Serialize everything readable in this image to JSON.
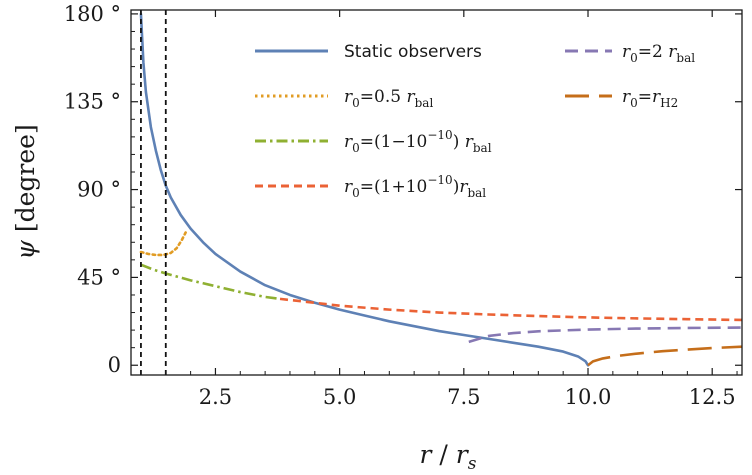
{
  "chart_data": {
    "type": "line",
    "xlabel_main": "r",
    "xlabel_sep": " / ",
    "xlabel_sub_base": "r",
    "xlabel_sub": "s",
    "ylabel_main": "ψ",
    "ylabel_unit": " [degree]",
    "xlim": [
      0.8,
      13.1
    ],
    "ylim": [
      -5,
      182
    ],
    "xticks": [
      {
        "value": 2.5,
        "label": "2.5"
      },
      {
        "value": 5.0,
        "label": "5.0"
      },
      {
        "value": 7.5,
        "label": "7.5"
      },
      {
        "value": 10.0,
        "label": "10.0"
      },
      {
        "value": 12.5,
        "label": "12.5"
      }
    ],
    "yticks": [
      {
        "value": 0,
        "label": "0"
      },
      {
        "value": 45,
        "label": "45 °"
      },
      {
        "value": 90,
        "label": "90 °"
      },
      {
        "value": 135,
        "label": "135 °"
      },
      {
        "value": 180,
        "label": "180 °"
      }
    ],
    "vlines": [
      1.0,
      1.5
    ],
    "series": [
      {
        "name": "Static observers",
        "color": "#5e81b5",
        "dash": "solid",
        "points": [
          [
            1.0,
            180
          ],
          [
            1.05,
            155
          ],
          [
            1.1,
            140
          ],
          [
            1.2,
            122
          ],
          [
            1.3,
            110
          ],
          [
            1.4,
            100
          ],
          [
            1.5,
            92
          ],
          [
            1.6,
            86
          ],
          [
            1.8,
            77
          ],
          [
            2.0,
            70
          ],
          [
            2.25,
            63
          ],
          [
            2.5,
            57
          ],
          [
            3.0,
            48
          ],
          [
            3.5,
            41
          ],
          [
            4.0,
            36
          ],
          [
            4.5,
            32
          ],
          [
            5.0,
            28.5
          ],
          [
            5.5,
            25.5
          ],
          [
            6.0,
            22.5
          ],
          [
            6.5,
            20.0
          ],
          [
            7.0,
            17.5
          ],
          [
            7.5,
            15.5
          ],
          [
            8.0,
            13.5
          ],
          [
            8.5,
            11.5
          ],
          [
            9.0,
            9.5
          ],
          [
            9.5,
            7.0
          ],
          [
            9.8,
            4.5
          ],
          [
            9.95,
            2.0
          ],
          [
            10.0,
            0
          ]
        ]
      },
      {
        "name": "r0=0.5 rbal",
        "color": "#e19c24",
        "dash": "dotted",
        "points": [
          [
            1.0,
            58
          ],
          [
            1.15,
            57
          ],
          [
            1.3,
            56.5
          ],
          [
            1.45,
            56.5
          ],
          [
            1.6,
            57.5
          ],
          [
            1.72,
            60
          ],
          [
            1.82,
            64
          ],
          [
            1.9,
            68
          ]
        ]
      },
      {
        "name": "r0=(1−10−10) rbal",
        "color": "#8fb032",
        "dash": "dashdot",
        "points": [
          [
            1.0,
            51.5
          ],
          [
            1.25,
            49
          ],
          [
            1.5,
            47
          ],
          [
            2.0,
            43.5
          ],
          [
            2.5,
            40.5
          ],
          [
            3.0,
            37.5
          ],
          [
            3.5,
            35
          ],
          [
            3.8,
            34
          ]
        ]
      },
      {
        "name": "r0=(1+10−10)rbal",
        "color": "#eb6235",
        "dash": "dashed",
        "points": [
          [
            3.8,
            34
          ],
          [
            4.5,
            32
          ],
          [
            5.0,
            30.5
          ],
          [
            6.0,
            28.5
          ],
          [
            7.0,
            27.0
          ],
          [
            8.0,
            26.0
          ],
          [
            9.0,
            25.2
          ],
          [
            10.0,
            24.5
          ],
          [
            11.0,
            24.0
          ],
          [
            12.0,
            23.6
          ],
          [
            13.1,
            23.2
          ]
        ]
      },
      {
        "name": "r0=2 rbal",
        "color": "#8778b3",
        "dash": "dashed-long",
        "points": [
          [
            7.6,
            12
          ],
          [
            8.0,
            15.0
          ],
          [
            8.5,
            16.5
          ],
          [
            9.0,
            17.4
          ],
          [
            10.0,
            18.3
          ],
          [
            11.0,
            18.8
          ],
          [
            12.0,
            19.1
          ],
          [
            13.1,
            19.3
          ]
        ]
      },
      {
        "name": "r0=rH2",
        "color": "#c56e1a",
        "dash": "longdash",
        "points": [
          [
            10.0,
            0
          ],
          [
            10.1,
            2.0
          ],
          [
            10.3,
            3.5
          ],
          [
            10.6,
            4.8
          ],
          [
            11.0,
            6.0
          ],
          [
            11.5,
            7.2
          ],
          [
            12.0,
            8.0
          ],
          [
            12.5,
            8.8
          ],
          [
            13.1,
            9.5
          ]
        ]
      }
    ]
  },
  "legend": {
    "static": "Static observers",
    "r0_sym": "r",
    "r0_sub": "0",
    "eq": "=",
    "item_half_coef": "0.5",
    "item_minus_a": "(1−10",
    "item_minus_exp": "−10",
    "item_minus_b": ")",
    "item_plus_a": "(1+10",
    "item_plus_exp": "−10",
    "item_plus_b": ")",
    "item_two_coef": "2",
    "rbal_sym": "r",
    "rbal_sub": "bal",
    "rh2_sym": "r",
    "rh2_sub": "H2"
  }
}
